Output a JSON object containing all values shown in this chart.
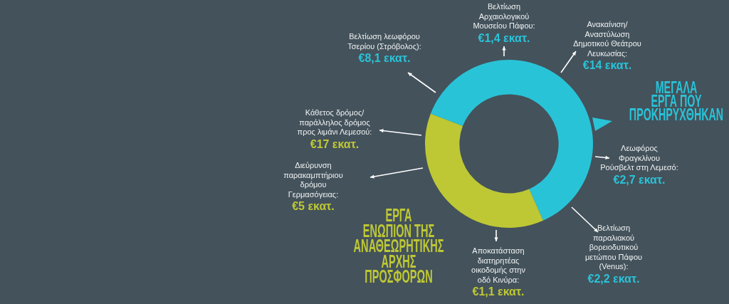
{
  "chart_data": {
    "type": "donut",
    "categories": [
      "ΜΕΓΑΛΑ\nΕΡΓΑ ΠΟΥ\nΠΡΟΚΗΡΥΧΘΗΚΑΝ",
      "ΕΡΓΑ\nΕΝΩΠΙΟΝ ΤΗΣ\nΑΝΑΘΕΩΡΗΤΙΚΗΣ\nΑΡΧΗΣ\nΠΡΟΣΦΟΡΩΝ"
    ],
    "values": [
      62.5,
      37.5
    ],
    "colors": [
      "#29c3d8",
      "#bec835"
    ],
    "annotations": [
      "Βελτίωση\nΑρχαιολογικού\nΜουσείου Πάφου:\n€1,4 εκατ.",
      "Ανακαίνιση/\nΑναστύλωση\nΔημοτικού Θεάτρου\nΛευκωσίας:\n€14 εκατ.",
      "Βελτίωση λεωφόρου\nΤσερίου (Στρόβολος):\n€8,1 εκατ.",
      "Λεωφόρος\nΦραγκλίνου\nΡούσβελτ στη Λεμεσό:\n€2,7 εκατ.",
      "Βελτίωση\nπαραλιακού\nβορειοδυτικού\nμετώπου Πάφου\n(Venus):\n€2,2 εκατ.",
      "Κάθετος δρόμος/\nπαράλληλος δρόμος\nπρος λιμάνι Λεμεσού:\n€17 εκατ.",
      "Διεύρυνση\nπαρακαμπτήριου\nδρόμου\nΓερμασόγειας:\n€5 εκατ.",
      "Αποκατάσταση\nδιατηρητέας\nοικοδομής στην\nοδό Κινύρα:\n€1,1 εκατ."
    ]
  }
}
